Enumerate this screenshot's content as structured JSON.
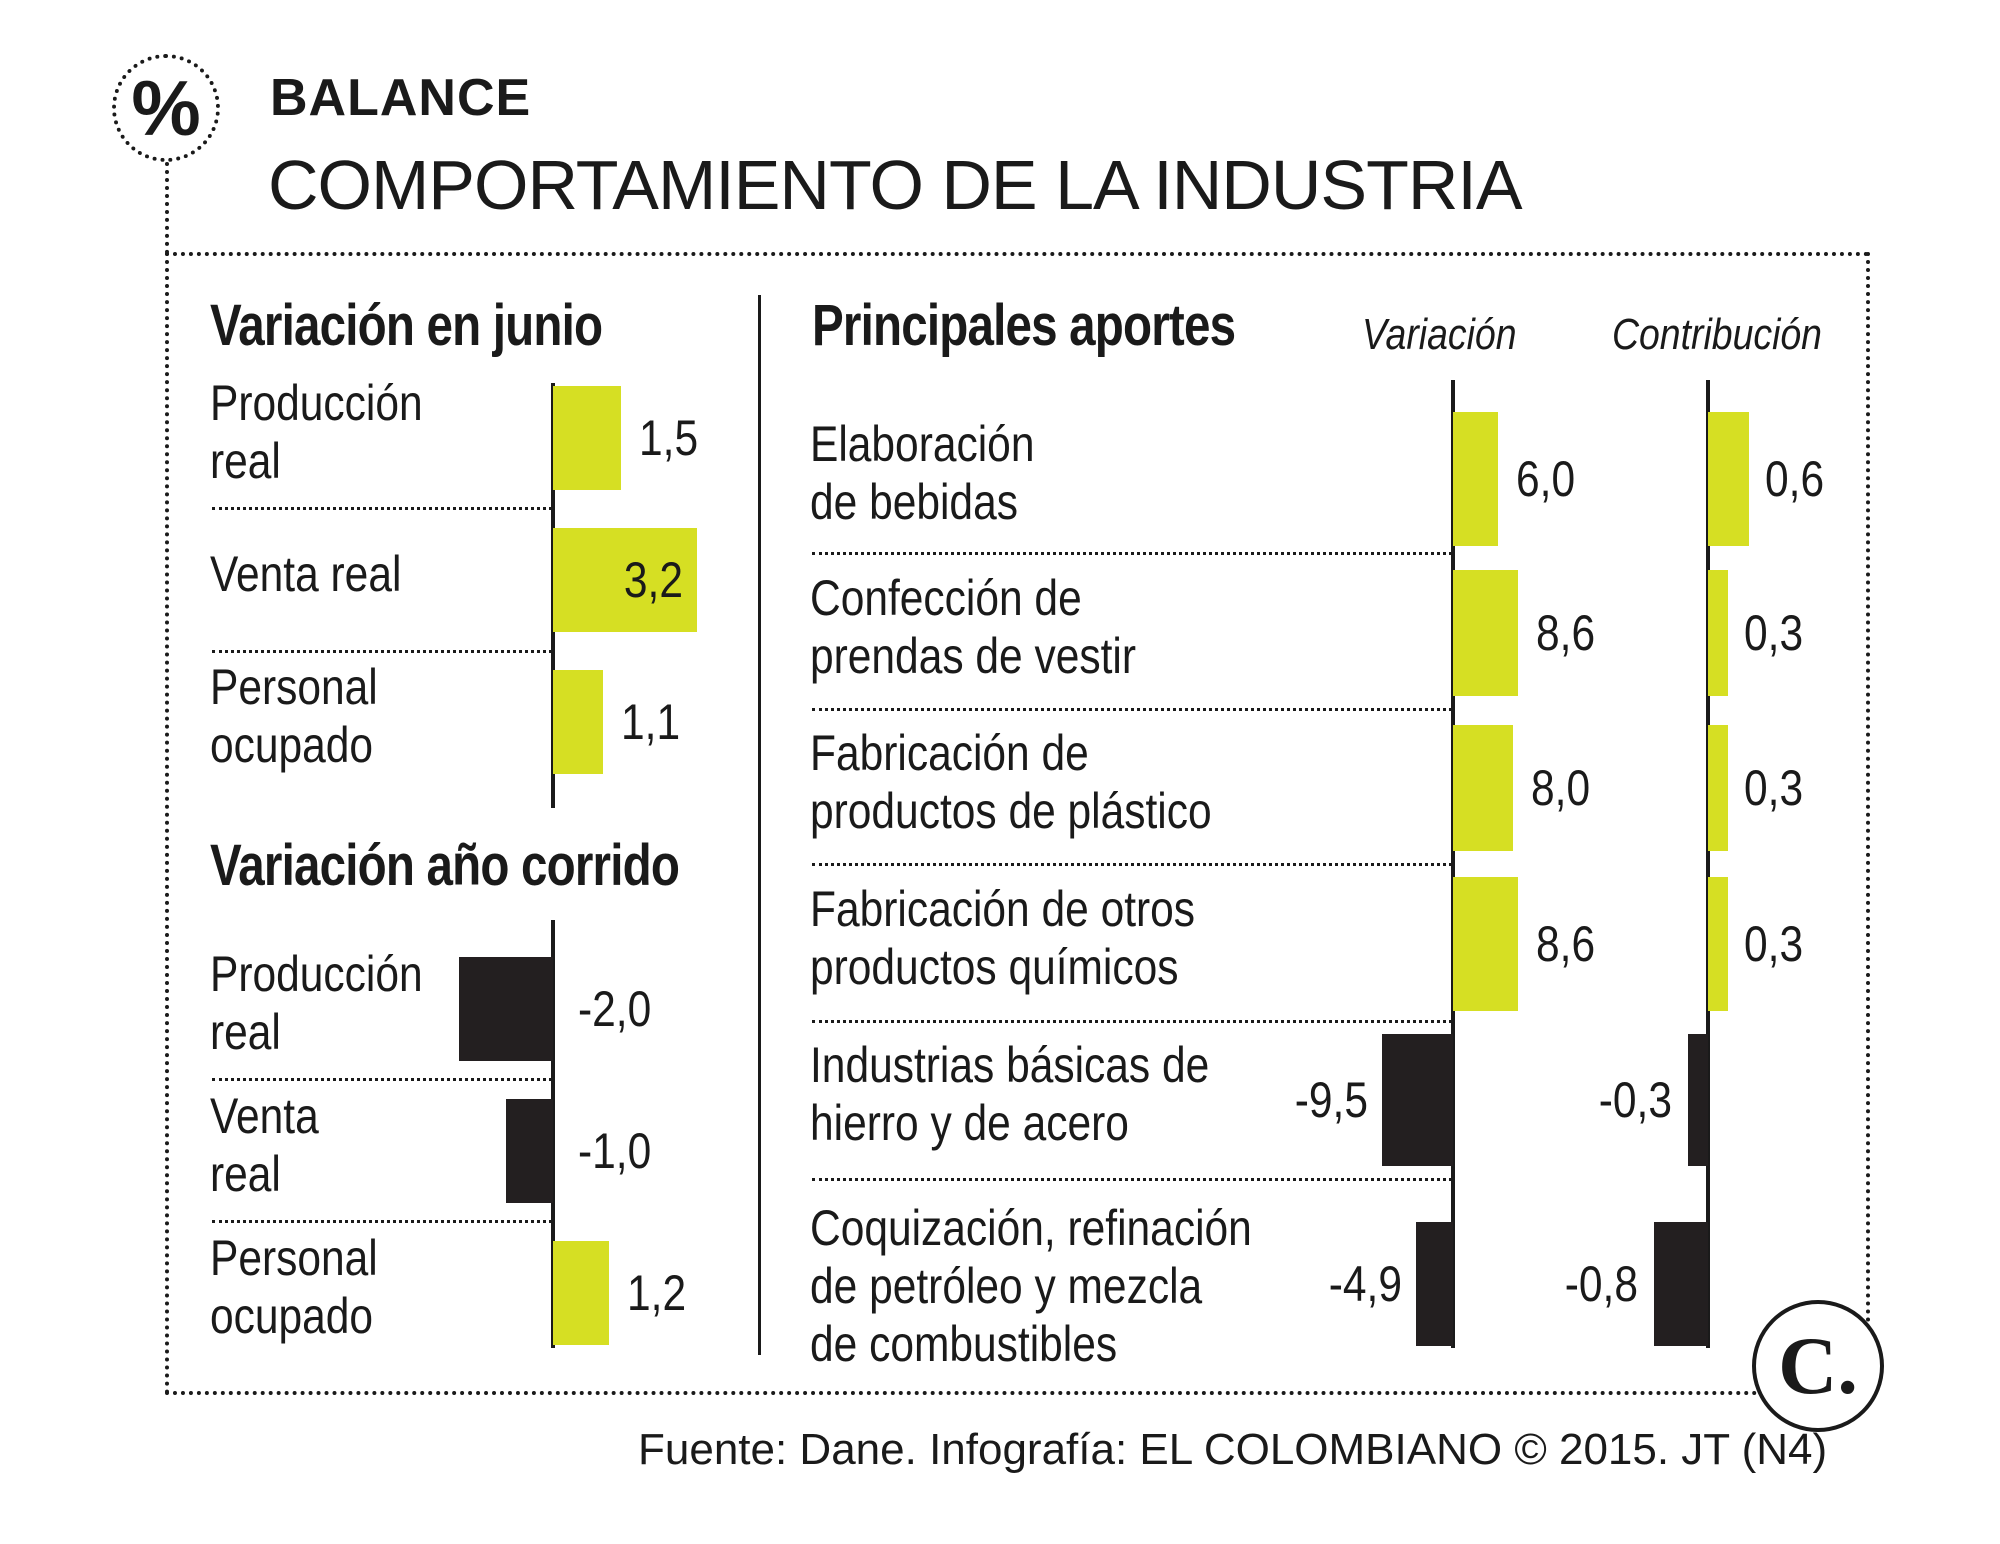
{
  "kicker": "BALANCE",
  "headline": "COMPORTAMIENTO DE LA INDUSTRIA",
  "percent_symbol": "%",
  "logo_letter": "C.",
  "source": "Fuente: Dane. Infografía: EL COLOMBIANO © 2015. JT (N4)",
  "colors": {
    "positive": "#d6df23",
    "negative": "#231f20",
    "text": "#1a1a1a"
  },
  "chart_data": [
    {
      "type": "bar",
      "orientation": "horizontal",
      "title": "Variación en junio",
      "categories": [
        [
          "Producción",
          "real"
        ],
        [
          "Venta real"
        ],
        [
          "Personal",
          "ocupado"
        ]
      ],
      "values": [
        1.5,
        3.2,
        1.1
      ],
      "value_labels": [
        "1,5",
        "3,2",
        "1,1"
      ]
    },
    {
      "type": "bar",
      "orientation": "horizontal",
      "title": "Variación año corrido",
      "categories": [
        [
          "Producción",
          "real"
        ],
        [
          "Venta",
          "real"
        ],
        [
          "Personal",
          "ocupado"
        ]
      ],
      "values": [
        -2.0,
        -1.0,
        1.2
      ],
      "value_labels": [
        "-2,0",
        "-1,0",
        "1,2"
      ]
    },
    {
      "type": "bar",
      "orientation": "horizontal",
      "title": "Principales aportes",
      "categories": [
        [
          "Elaboración",
          "de bebidas"
        ],
        [
          "Confección de",
          "prendas de vestir"
        ],
        [
          "Fabricación de",
          "productos de plástico"
        ],
        [
          "Fabricación de otros",
          "productos químicos"
        ],
        [
          "Industrias básicas de",
          "hierro y de acero"
        ],
        [
          "Coquización, refinación",
          "de petróleo y mezcla",
          "de combustibles"
        ]
      ],
      "series": [
        {
          "name": "Variación",
          "values": [
            6.0,
            8.6,
            8.0,
            8.6,
            -9.5,
            -4.9
          ],
          "value_labels": [
            "6,0",
            "8,6",
            "8,0",
            "8,6",
            "-9,5",
            "-4,9"
          ]
        },
        {
          "name": "Contribución",
          "values": [
            0.6,
            0.3,
            0.3,
            0.3,
            -0.3,
            -0.8
          ],
          "value_labels": [
            "0,6",
            "0,3",
            "0,3",
            "0,3",
            "-0,3",
            "-0,8"
          ]
        }
      ]
    }
  ]
}
